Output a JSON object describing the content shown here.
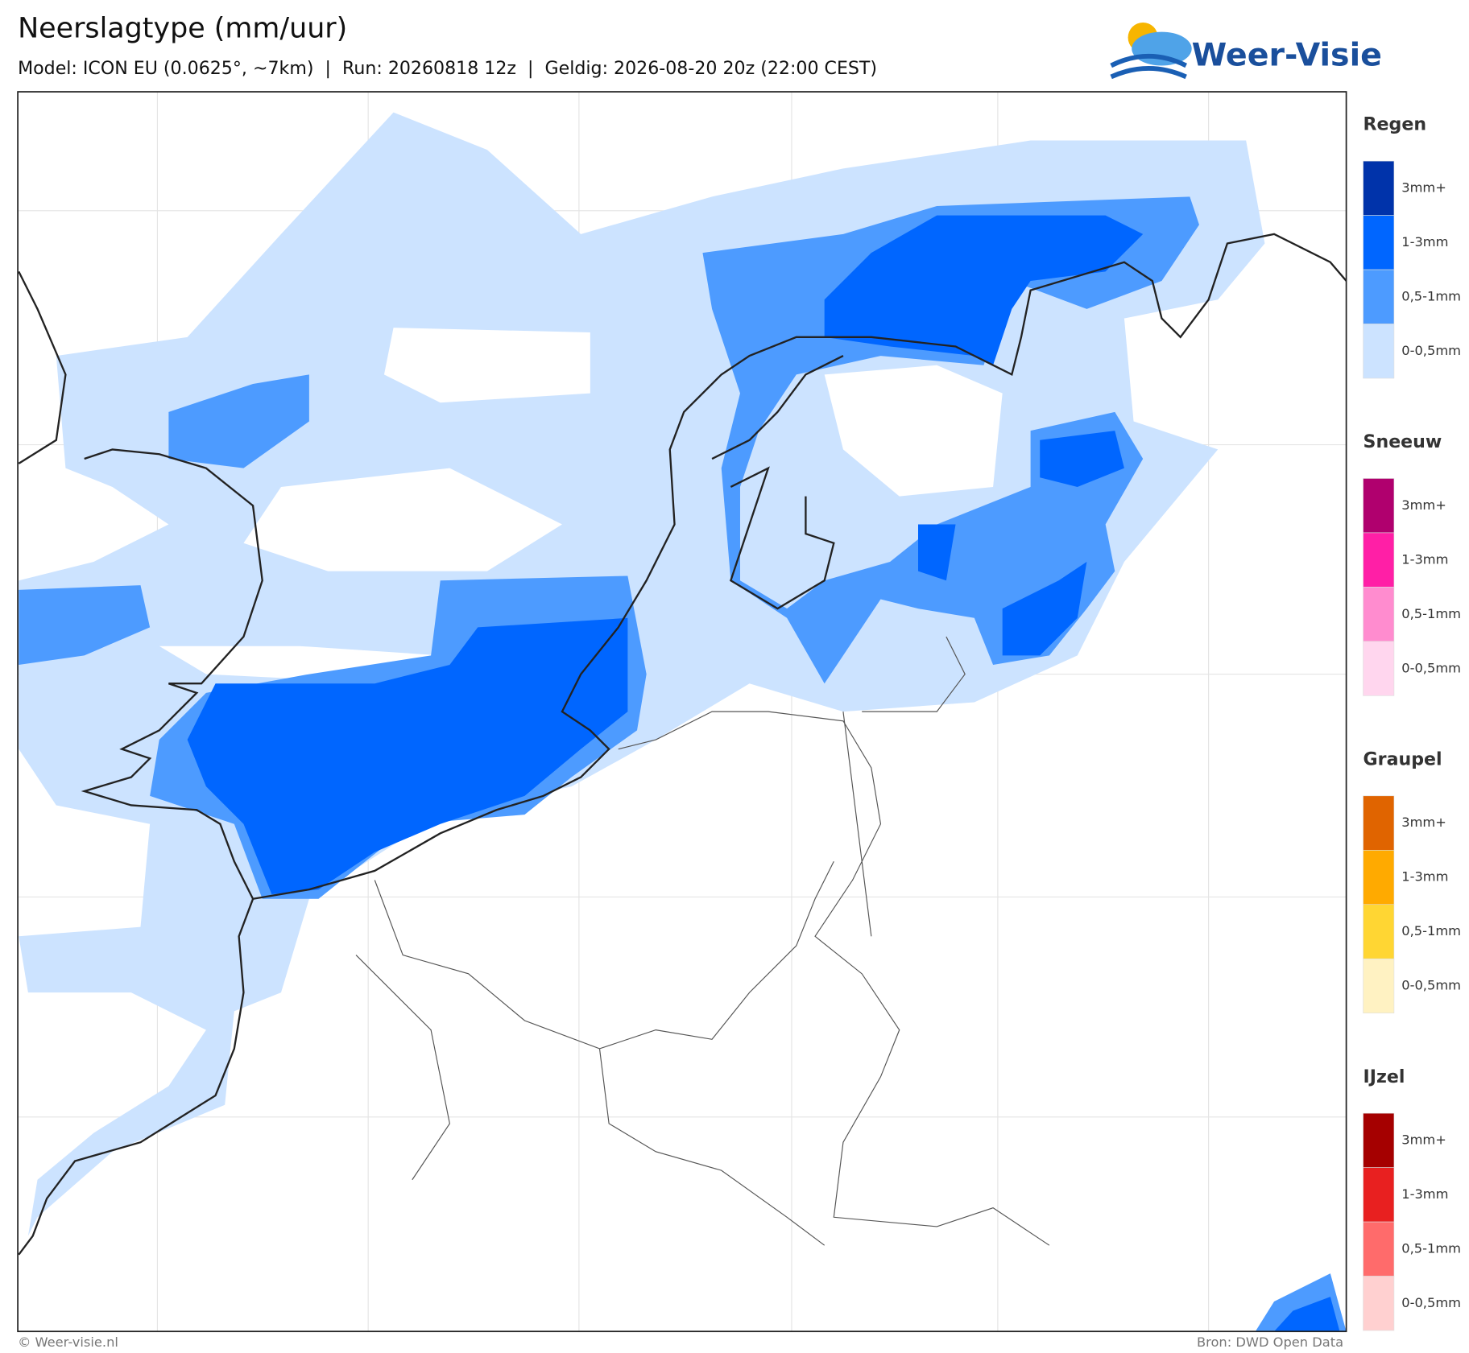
{
  "header": {
    "title": "Neerslagtype (mm/uur)",
    "subtitle": "Model: ICON EU (0.0625°, ~7km)  |  Run: 20260818 12z  |  Geldig: 2026-08-20 20z (22:00 CEST)"
  },
  "logo": {
    "text": "Weer-Visie"
  },
  "legend": {
    "groups": [
      {
        "title": "Regen",
        "items": [
          {
            "label": "3mm+",
            "color": "#0033aa"
          },
          {
            "label": "1-3mm",
            "color": "#0066ff"
          },
          {
            "label": "0,5-1mm",
            "color": "#4d9bff"
          },
          {
            "label": "0-0,5mm",
            "color": "#cce3ff"
          }
        ]
      },
      {
        "title": "Sneeuw",
        "items": [
          {
            "label": "3mm+",
            "color": "#b0006e"
          },
          {
            "label": "1-3mm",
            "color": "#ff1fa6"
          },
          {
            "label": "0,5-1mm",
            "color": "#ff8ccf"
          },
          {
            "label": "0-0,5mm",
            "color": "#ffd6ee"
          }
        ]
      },
      {
        "title": "Graupel",
        "items": [
          {
            "label": "3mm+",
            "color": "#e06400"
          },
          {
            "label": "1-3mm",
            "color": "#ffaa00"
          },
          {
            "label": "0,5-1mm",
            "color": "#ffd633"
          },
          {
            "label": "0-0,5mm",
            "color": "#fff2c2"
          }
        ]
      },
      {
        "title": "IJzel",
        "items": [
          {
            "label": "3mm+",
            "color": "#a50000"
          },
          {
            "label": "1-3mm",
            "color": "#e82020"
          },
          {
            "label": "0,5-1mm",
            "color": "#ff6b6b"
          },
          {
            "label": "0-0,5mm",
            "color": "#ffd0d0"
          }
        ]
      }
    ]
  },
  "footer": {
    "credit": "© Weer-visie.nl",
    "source": "Bron: DWD Open Data"
  }
}
